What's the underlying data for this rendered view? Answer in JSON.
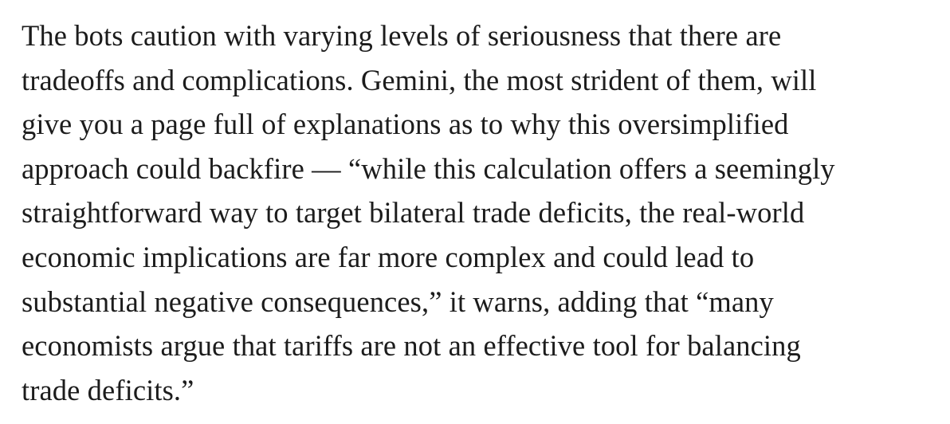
{
  "paragraph": {
    "lines": [
      "The bots caution with varying levels of seriousness that there are",
      "tradeoffs and complications. Gemini, the most strident of them, will",
      "give you a page full of explanations as to why this oversimplified",
      "approach could backfire — “while this calculation offers a seemingly",
      "straightforward way to target bilateral trade deficits, the real-world",
      "economic implications are far more complex and could lead to",
      "substantial negative consequences,” it warns, adding that “many",
      "economists argue that tariffs are not an effective tool for balancing",
      "trade deficits.”"
    ]
  }
}
